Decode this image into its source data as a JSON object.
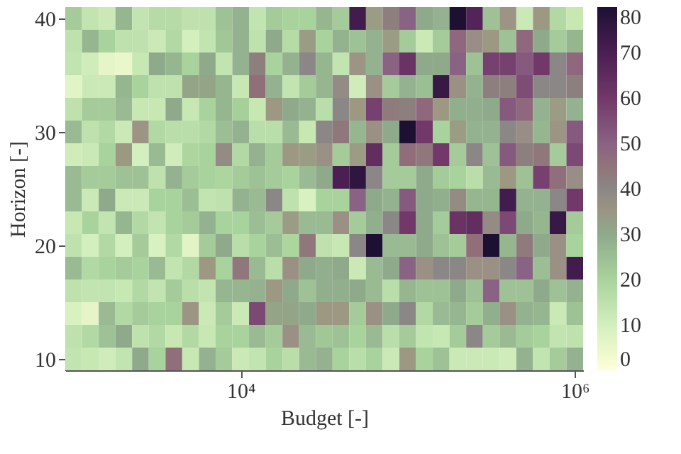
{
  "chart_data": {
    "type": "heatmap",
    "xlabel": "Budget [-]",
    "ylabel": "Horizon [-]",
    "log": "x",
    "x": [
      1000,
      1259,
      1585,
      1995,
      2512,
      3162,
      3981,
      5012,
      6310,
      7943,
      10000,
      12589,
      15849,
      19953,
      25119,
      31623,
      39811,
      50119,
      63096,
      79433,
      100000,
      125893,
      158489,
      199526,
      251189,
      316228,
      398107,
      501187,
      630957,
      794328,
      1000000
    ],
    "xlim": [
      891,
      1122018
    ],
    "ylim": [
      9,
      41
    ],
    "xticks": [
      {
        "value": 10000,
        "label": "10⁴"
      },
      {
        "value": 1000000,
        "label": "10⁶"
      }
    ],
    "yticks": [
      10,
      20,
      30,
      40
    ],
    "clim": [
      0,
      80
    ],
    "cticks": [
      0,
      10,
      20,
      30,
      40,
      50,
      60,
      70,
      80
    ],
    "grid": false,
    "cells": [
      [
        22,
        14,
        12,
        27,
        14,
        17,
        17,
        15,
        15,
        24,
        28,
        14,
        22,
        20,
        20,
        27,
        22,
        72,
        33,
        42,
        50,
        30,
        28,
        80,
        68,
        24,
        35,
        12,
        34,
        18,
        13
      ],
      [
        15,
        27,
        20,
        15,
        15,
        12,
        18,
        10,
        14,
        23,
        28,
        15,
        30,
        17,
        33,
        20,
        28,
        24,
        28,
        33,
        22,
        12,
        22,
        48,
        37,
        34,
        24,
        48,
        30,
        22,
        27
      ],
      [
        14,
        11,
        6,
        5,
        13,
        30,
        27,
        20,
        30,
        14,
        28,
        42,
        20,
        28,
        40,
        27,
        14,
        35,
        28,
        50,
        62,
        30,
        30,
        50,
        24,
        58,
        58,
        52,
        60,
        40,
        48
      ],
      [
        7,
        12,
        12,
        27,
        20,
        15,
        15,
        31,
        31,
        27,
        13,
        46,
        28,
        14,
        22,
        27,
        38,
        11,
        36,
        22,
        28,
        25,
        74,
        36,
        28,
        42,
        42,
        55,
        40,
        40,
        42
      ],
      [
        15,
        22,
        22,
        26,
        13,
        13,
        30,
        13,
        20,
        27,
        21,
        13,
        34,
        30,
        28,
        16,
        40,
        34,
        58,
        43,
        42,
        48,
        34,
        29,
        29,
        30,
        52,
        48,
        28,
        33,
        28
      ],
      [
        26,
        15,
        18,
        12,
        35,
        18,
        16,
        16,
        18,
        25,
        28,
        16,
        16,
        26,
        13,
        40,
        44,
        27,
        36,
        30,
        80,
        60,
        20,
        33,
        28,
        28,
        40,
        37,
        27,
        35,
        52
      ],
      [
        11,
        12,
        20,
        34,
        10,
        26,
        11,
        19,
        20,
        38,
        18,
        28,
        22,
        34,
        33,
        36,
        22,
        33,
        64,
        22,
        47,
        44,
        60,
        22,
        40,
        24,
        52,
        42,
        44,
        22,
        56
      ],
      [
        26,
        22,
        22,
        24,
        24,
        15,
        28,
        22,
        20,
        19,
        22,
        24,
        22,
        20,
        26,
        30,
        70,
        76,
        40,
        22,
        22,
        30,
        22,
        20,
        16,
        26,
        34,
        24,
        58,
        46,
        37
      ],
      [
        26,
        12,
        30,
        12,
        12,
        20,
        20,
        25,
        14,
        15,
        28,
        26,
        40,
        15,
        9,
        20,
        20,
        50,
        30,
        28,
        52,
        30,
        29,
        38,
        27,
        27,
        72,
        28,
        28,
        40,
        60
      ],
      [
        13,
        20,
        14,
        27,
        18,
        14,
        20,
        22,
        28,
        20,
        20,
        25,
        22,
        33,
        26,
        26,
        36,
        22,
        29,
        40,
        60,
        30,
        22,
        62,
        64,
        38,
        56,
        30,
        27,
        74,
        22
      ],
      [
        15,
        10,
        18,
        10,
        22,
        9,
        18,
        7,
        22,
        30,
        16,
        20,
        25,
        19,
        44,
        15,
        13,
        40,
        80,
        26,
        26,
        30,
        24,
        22,
        46,
        80,
        27,
        43,
        30,
        36,
        20
      ],
      [
        26,
        18,
        20,
        22,
        20,
        26,
        14,
        18,
        34,
        20,
        44,
        26,
        16,
        36,
        30,
        29,
        30,
        12,
        26,
        30,
        50,
        36,
        40,
        40,
        36,
        36,
        40,
        50,
        25,
        36,
        72
      ],
      [
        15,
        14,
        14,
        13,
        18,
        14,
        22,
        16,
        14,
        27,
        27,
        28,
        34,
        30,
        24,
        29,
        29,
        30,
        26,
        16,
        27,
        24,
        24,
        30,
        24,
        50,
        24,
        24,
        30,
        24,
        28
      ],
      [
        9,
        6,
        26,
        18,
        22,
        20,
        20,
        35,
        12,
        22,
        12,
        56,
        31,
        31,
        30,
        34,
        34,
        22,
        36,
        30,
        40,
        18,
        26,
        27,
        22,
        29,
        36,
        28,
        27,
        12,
        24
      ],
      [
        15,
        18,
        24,
        30,
        15,
        18,
        13,
        18,
        13,
        20,
        20,
        26,
        22,
        36,
        26,
        23,
        24,
        20,
        26,
        16,
        22,
        14,
        13,
        22,
        40,
        22,
        26,
        22,
        20,
        14,
        15
      ],
      [
        14,
        13,
        11,
        14,
        30,
        20,
        46,
        13,
        28,
        22,
        12,
        14,
        20,
        16,
        26,
        28,
        20,
        16,
        20,
        12,
        34,
        20,
        24,
        12,
        12,
        12,
        11,
        28,
        14,
        22,
        28
      ]
    ]
  }
}
